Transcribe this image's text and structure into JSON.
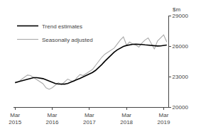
{
  "chart_data": {
    "type": "line",
    "ylabel": "$m",
    "categories": [
      "Mar\n2015",
      null,
      null,
      null,
      null,
      null,
      null,
      null,
      null,
      null,
      null,
      null,
      "Mar\n2016",
      null,
      null,
      null,
      null,
      null,
      null,
      null,
      null,
      null,
      null,
      null,
      "Mar\n2017",
      null,
      null,
      null,
      null,
      null,
      null,
      null,
      null,
      null,
      null,
      null,
      "Mar\n2018",
      null,
      null,
      null,
      null,
      null,
      null,
      null,
      null,
      null,
      null,
      null,
      "Mar\n2019",
      null
    ],
    "series": [
      {
        "name": "Seasonally adjusted",
        "color": "#aaaaaa",
        "values": [
          22350,
          22450,
          22700,
          22950,
          23150,
          23100,
          22900,
          22700,
          22550,
          22300,
          21900,
          21750,
          21900,
          22150,
          22400,
          22200,
          22500,
          22750,
          22600,
          22500,
          22900,
          23200,
          23100,
          23300,
          23500,
          23700,
          24100,
          24500,
          24900,
          25200,
          25400,
          25600,
          25800,
          26200,
          26600,
          26900,
          26100,
          26400,
          26200,
          26100,
          25900,
          26300,
          26600,
          26800,
          26200,
          25700,
          26500,
          26800,
          27100,
          26400
        ]
      },
      {
        "name": "Trend estimates",
        "color": "#000000",
        "values": [
          22400,
          22480,
          22560,
          22650,
          22750,
          22830,
          22900,
          22900,
          22870,
          22800,
          22680,
          22550,
          22420,
          22320,
          22270,
          22240,
          22260,
          22320,
          22430,
          22560,
          22700,
          22830,
          22960,
          23090,
          23230,
          23400,
          23610,
          23870,
          24180,
          24510,
          24830,
          25130,
          25400,
          25630,
          25820,
          25960,
          26060,
          26130,
          26170,
          26180,
          26180,
          26160,
          26120,
          26080,
          26040,
          26000,
          26010,
          26020,
          26050,
          26100
        ]
      }
    ],
    "ylim": [
      20000,
      29000
    ],
    "yticks": [
      20000,
      23000,
      26000,
      29000
    ],
    "grid": false,
    "legend": "upper left"
  }
}
